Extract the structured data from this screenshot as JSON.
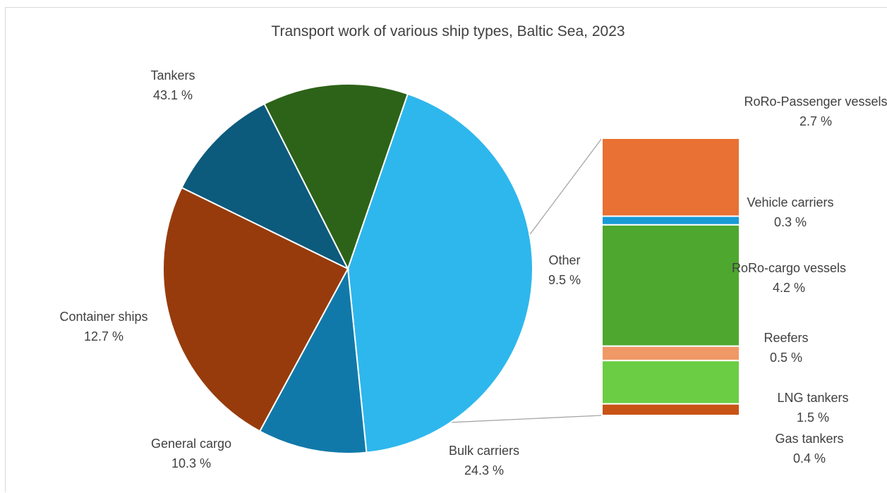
{
  "chart_data": {
    "type": "pie",
    "subtype": "bar-of-pie",
    "title": "Transport work of various ship types, Baltic Sea, 2023",
    "slices": [
      {
        "label": "Tankers",
        "value_label": "43.1 %",
        "value": 43.1,
        "color": "#2eb7ed"
      },
      {
        "label": "Other",
        "value_label": "9.5 %",
        "value": 9.5,
        "color": "#1179a9"
      },
      {
        "label": "Bulk carriers",
        "value_label": "24.3 %",
        "value": 24.3,
        "color": "#973b0c"
      },
      {
        "label": "General cargo",
        "value_label": "10.3 %",
        "value": 10.3,
        "color": "#0c5a7c"
      },
      {
        "label": "Container ships",
        "value_label": "12.7 %",
        "value": 12.7,
        "color": "#2d6318"
      }
    ],
    "other_breakdown": [
      {
        "label": "RoRo-Passenger vessels",
        "value_label": "2.7 %",
        "value": 2.7,
        "color": "#e87133"
      },
      {
        "label": "Vehicle carriers",
        "value_label": "0.3 %",
        "value": 0.3,
        "color": "#1a9ad6"
      },
      {
        "label": "RoRo-cargo vessels",
        "value_label": "4.2 %",
        "value": 4.2,
        "color": "#4ea72e"
      },
      {
        "label": "Reefers",
        "value_label": "0.5 %",
        "value": 0.5,
        "color": "#f09866"
      },
      {
        "label": "LNG tankers",
        "value_label": "1.5 %",
        "value": 1.5,
        "color": "#6bcd44"
      },
      {
        "label": "Gas tankers",
        "value_label": "0.4 %",
        "value": 0.4,
        "color": "#c85316"
      }
    ],
    "legend": "none"
  }
}
